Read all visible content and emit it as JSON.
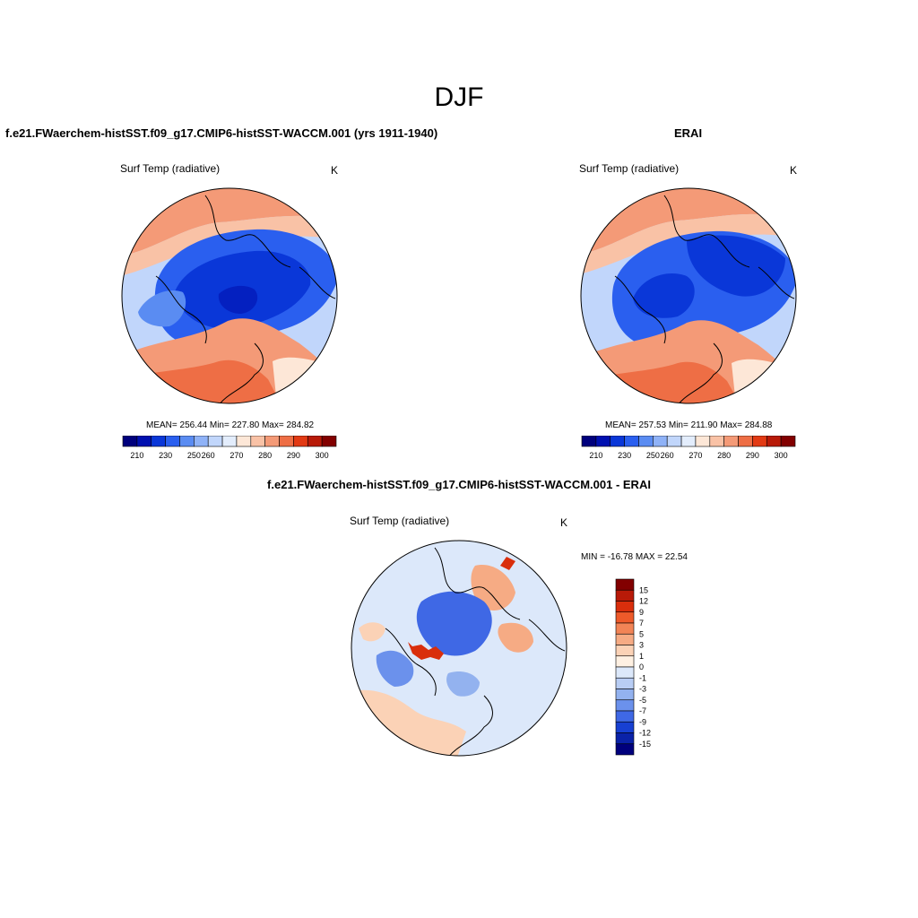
{
  "page_title": "DJF",
  "panels": {
    "model": {
      "case_title": "f.e21.FWaerchem-histSST.f09_g17.CMIP6-histSST-WACCM.001 (yrs 1911-1940)",
      "variable": "Surf Temp (radiative)",
      "units": "K",
      "stats": "MEAN= 256.44  Min= 227.80  Max= 284.82",
      "colorbar_ticks": [
        "210",
        "230",
        "250",
        "260",
        "270",
        "280",
        "290",
        "300"
      ]
    },
    "obs": {
      "case_title": "ERAI",
      "variable": "Surf Temp (radiative)",
      "units": "K",
      "stats": "MEAN= 257.53  Min= 211.90  Max= 284.88",
      "colorbar_ticks": [
        "210",
        "230",
        "250",
        "260",
        "270",
        "280",
        "290",
        "300"
      ]
    },
    "diff": {
      "case_title": "f.e21.FWaerchem-histSST.f09_g17.CMIP6-histSST-WACCM.001 - ERAI",
      "variable": "Surf Temp (radiative)",
      "units": "K",
      "stats": "MIN = -16.78 MAX =  22.54",
      "colorbar_ticks": [
        "15",
        "12",
        "9",
        "7",
        "5",
        "3",
        "1",
        "0",
        "-1",
        "-3",
        "-5",
        "-7",
        "-9",
        "-12",
        "-15"
      ]
    }
  },
  "colors": {
    "abs_scale": [
      "#00007d",
      "#0010b0",
      "#0a37d8",
      "#2a5fef",
      "#5a8cf2",
      "#8fb2f7",
      "#c1d6fb",
      "#e3edfc",
      "#fde7d7",
      "#f9c2a6",
      "#f49a77",
      "#ee6e45",
      "#e23a14",
      "#b81a08",
      "#820000"
    ],
    "diff_scale": [
      "#820000",
      "#b81a08",
      "#d92e0c",
      "#ee5a2a",
      "#f28456",
      "#f6ab84",
      "#fbd2b6",
      "#fef0e2",
      "#dce8fa",
      "#b8cdf4",
      "#93b2ef",
      "#6b91ec",
      "#3f68e5",
      "#1740d2",
      "#0a22a8",
      "#00007d"
    ]
  }
}
